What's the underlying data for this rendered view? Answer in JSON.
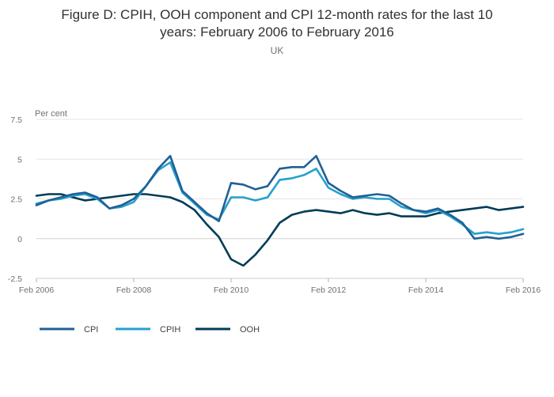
{
  "title": "Figure D: CPIH, OOH component and CPI 12-month rates for the last 10 years: February 2006 to February 2016",
  "title_lines": [
    "Figure D: CPIH, OOH component and CPI 12-month rates for the last 10",
    "years: February 2006 to February 2016"
  ],
  "subtitle": "UK",
  "chart_data": {
    "type": "line",
    "title": "Figure D: CPIH, OOH component and CPI 12-month rates for the last 10 years: February 2006 to February 2016",
    "subtitle": "UK",
    "ylabel": "Per cent",
    "xlabel": "",
    "ylim": [
      -2.5,
      7.5
    ],
    "yticks": [
      -2.5,
      0,
      2.5,
      5,
      7.5
    ],
    "yticklabels": [
      "-2.5",
      "0",
      "2.5",
      "5",
      "7.5"
    ],
    "xlim": [
      0,
      120
    ],
    "xticks": [
      0,
      24,
      48,
      72,
      96,
      120
    ],
    "xticklabels": [
      "Feb 2006",
      "Feb 2008",
      "Feb 2010",
      "Feb 2012",
      "Feb 2014",
      "Feb 2016"
    ],
    "grid": true,
    "legend_position": "bottom-left",
    "x_note": "x = months since February 2006, points every 3 months",
    "x": [
      0,
      3,
      6,
      9,
      12,
      15,
      18,
      21,
      24,
      27,
      30,
      33,
      36,
      39,
      42,
      45,
      48,
      51,
      54,
      57,
      60,
      63,
      66,
      69,
      72,
      75,
      78,
      81,
      84,
      87,
      90,
      93,
      96,
      99,
      102,
      105,
      108,
      111,
      114,
      117,
      120
    ],
    "series": [
      {
        "name": "CPI",
        "color": "#206095",
        "values": [
          2.1,
          2.4,
          2.6,
          2.8,
          2.9,
          2.6,
          1.9,
          2.1,
          2.5,
          3.3,
          4.4,
          5.2,
          3.0,
          2.3,
          1.6,
          1.1,
          3.5,
          3.4,
          3.1,
          3.3,
          4.4,
          4.5,
          4.5,
          5.2,
          3.5,
          3.0,
          2.6,
          2.7,
          2.8,
          2.7,
          2.2,
          1.8,
          1.7,
          1.9,
          1.5,
          1.0,
          0.0,
          0.1,
          0.0,
          0.1,
          0.3
        ]
      },
      {
        "name": "CPIH",
        "color": "#27A0CC",
        "values": [
          2.2,
          2.4,
          2.5,
          2.7,
          2.8,
          2.5,
          1.9,
          2.0,
          2.3,
          3.3,
          4.3,
          4.8,
          2.9,
          2.2,
          1.5,
          1.2,
          2.6,
          2.6,
          2.4,
          2.6,
          3.7,
          3.8,
          4.0,
          4.4,
          3.2,
          2.8,
          2.5,
          2.6,
          2.5,
          2.5,
          2.0,
          1.8,
          1.6,
          1.8,
          1.4,
          0.9,
          0.3,
          0.4,
          0.3,
          0.4,
          0.6
        ]
      },
      {
        "name": "OOH",
        "color": "#003C57",
        "values": [
          2.7,
          2.8,
          2.8,
          2.6,
          2.4,
          2.5,
          2.6,
          2.7,
          2.8,
          2.8,
          2.7,
          2.6,
          2.3,
          1.8,
          0.9,
          0.1,
          -1.3,
          -1.7,
          -1.0,
          -0.1,
          1.0,
          1.5,
          1.7,
          1.8,
          1.7,
          1.6,
          1.8,
          1.6,
          1.5,
          1.6,
          1.4,
          1.4,
          1.4,
          1.6,
          1.7,
          1.8,
          1.9,
          2.0,
          1.8,
          1.9,
          2.0
        ]
      }
    ]
  }
}
